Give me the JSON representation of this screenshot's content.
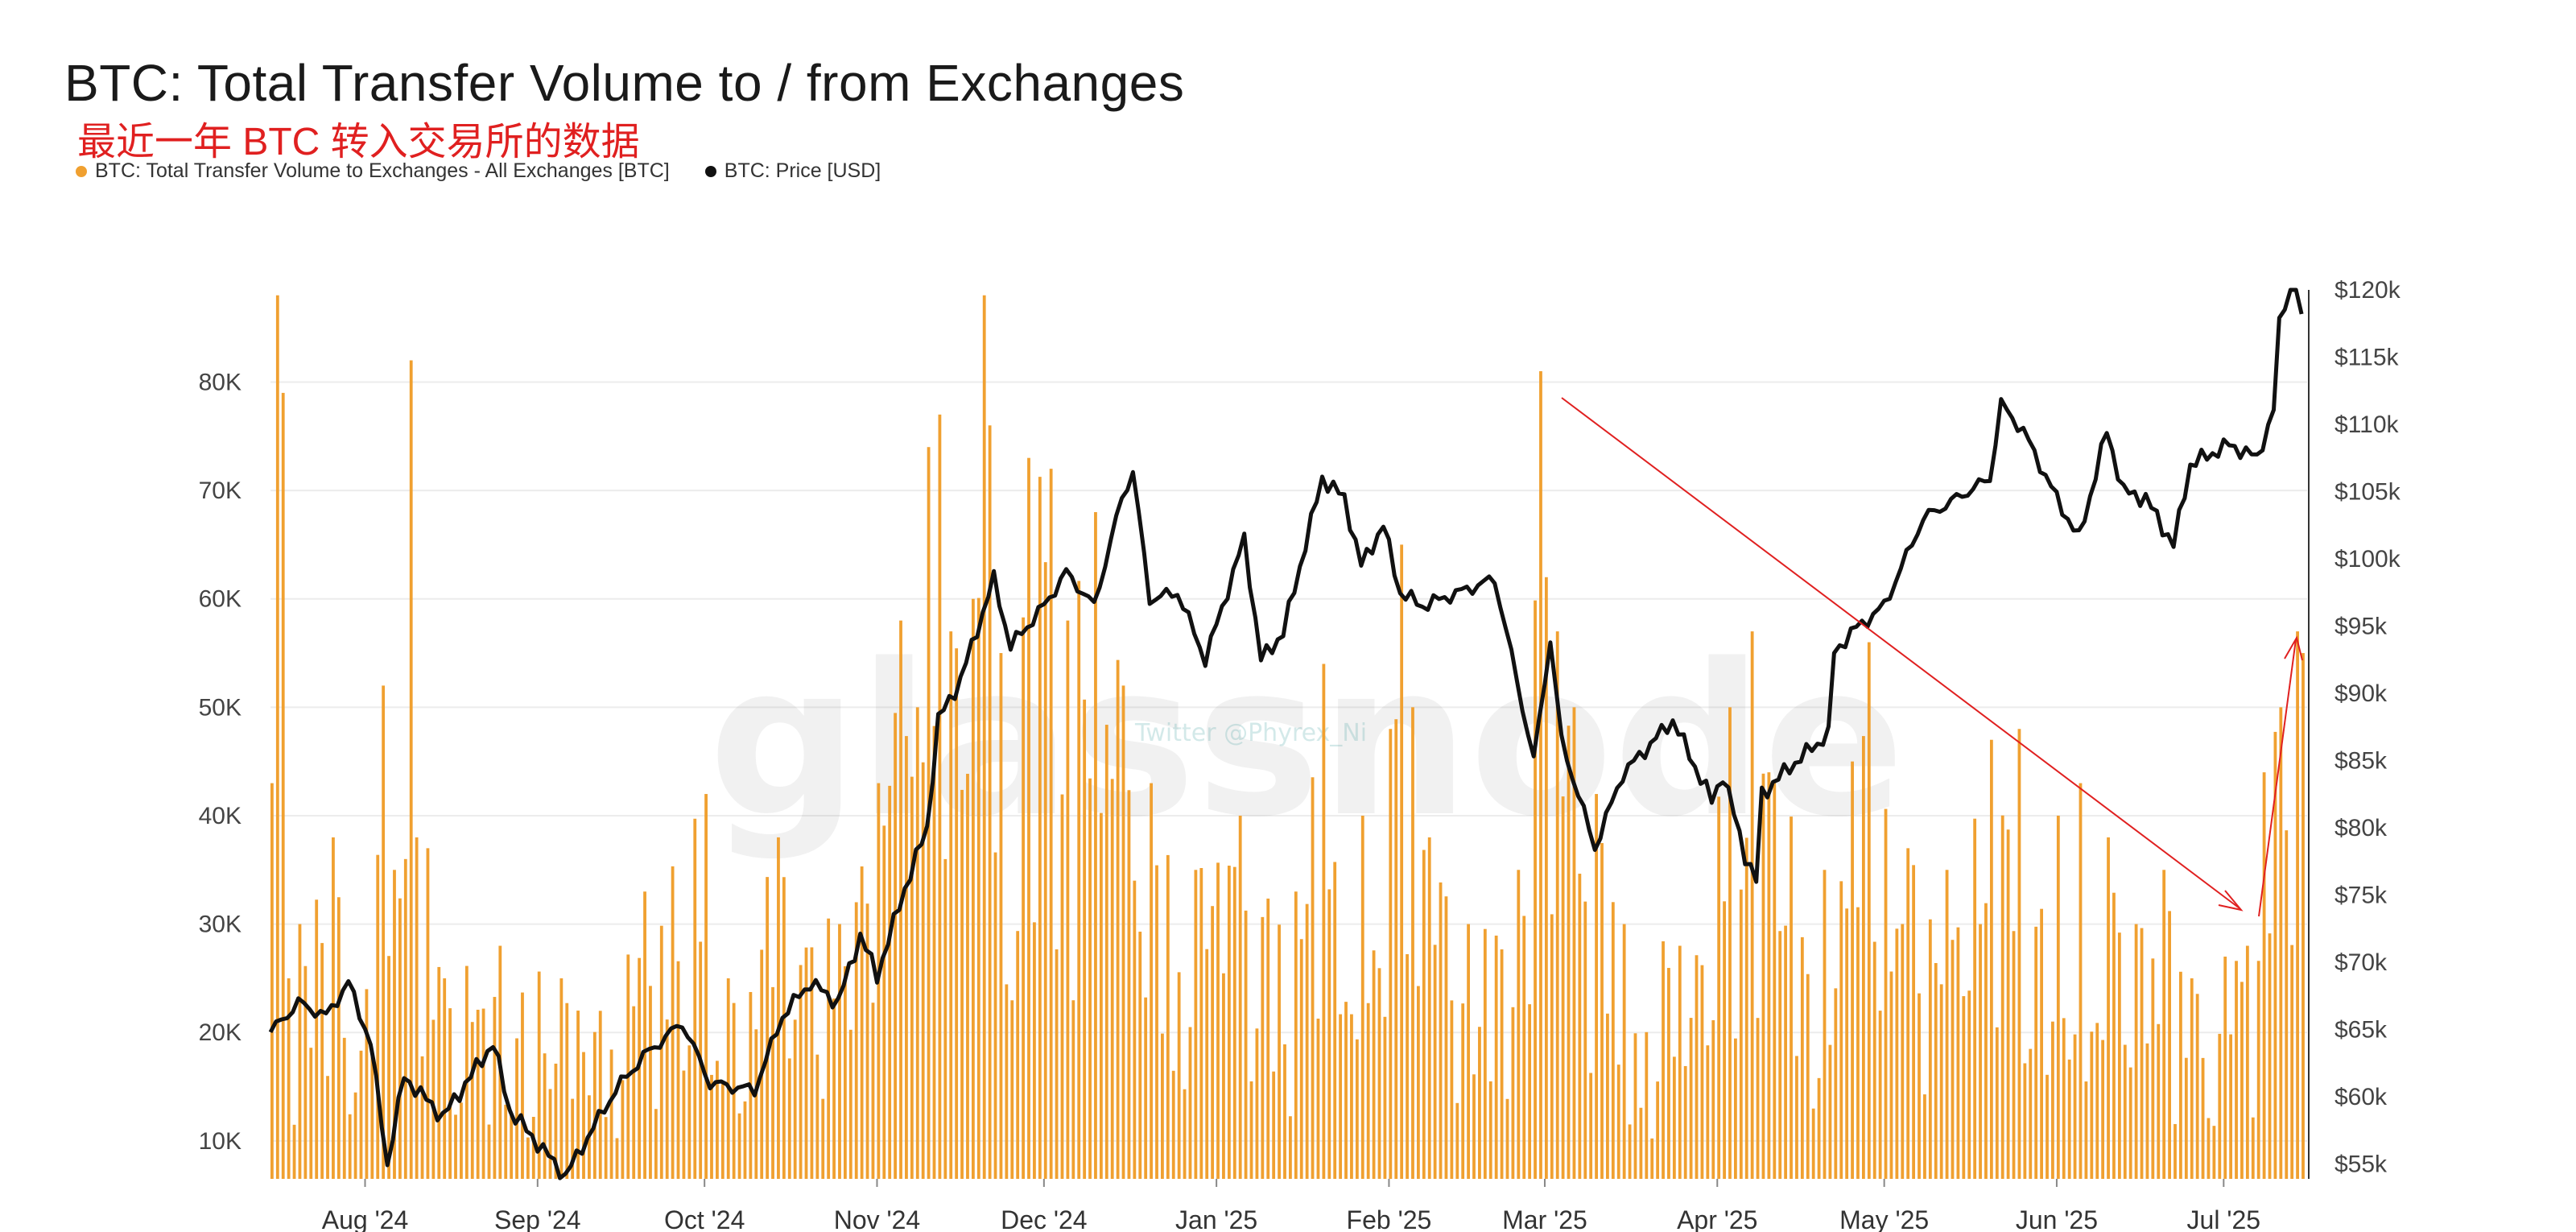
{
  "title": "BTC: Total Transfer Volume to / from Exchanges",
  "subtitle": "最近一年 BTC 转入交易所的数据",
  "watermark": "glassnode",
  "watermark_small": "Twitter @Phyrex_Ni",
  "colors": {
    "bar": "#f0a030",
    "price": "#111111",
    "annotation": "#e02020",
    "grid": "#ececec"
  },
  "chart_data": {
    "type": "bar",
    "legend_position": "top-left",
    "grid": true,
    "x_ticks": [
      "Aug '24",
      "Sep '24",
      "Oct '24",
      "Nov '24",
      "Dec '24",
      "Jan '25",
      "Feb '25",
      "Mar '25",
      "Apr '25",
      "May '25",
      "Jun '25",
      "Jul '25"
    ],
    "x_tick_dates": [
      "2024-08-01",
      "2024-09-01",
      "2024-10-01",
      "2024-11-01",
      "2024-12-01",
      "2025-01-01",
      "2025-02-01",
      "2025-03-01",
      "2025-04-01",
      "2025-05-01",
      "2025-06-01",
      "2025-07-01"
    ],
    "x_range": [
      "2024-07-15",
      "2025-07-16"
    ],
    "y_left": {
      "ticks": [
        "10K",
        "20K",
        "30K",
        "40K",
        "50K",
        "60K",
        "70K",
        "80K"
      ],
      "tick_values": [
        10000,
        20000,
        30000,
        40000,
        50000,
        60000,
        70000,
        80000
      ],
      "range": [
        6500,
        88500
      ]
    },
    "y_right": {
      "ticks": [
        "$55k",
        "$60k",
        "$65k",
        "$70k",
        "$75k",
        "$80k",
        "$85k",
        "$90k",
        "$95k",
        "$100k",
        "$105k",
        "$110k",
        "$115k",
        "$120k"
      ],
      "tick_values": [
        55000,
        60000,
        65000,
        70000,
        75000,
        80000,
        85000,
        90000,
        95000,
        100000,
        105000,
        110000,
        115000,
        120000
      ],
      "range": [
        53900,
        120000
      ]
    },
    "series": [
      {
        "name": "BTC: Total Transfer Volume to Exchanges - All Exchanges [BTC]",
        "type": "bar",
        "axis": "left",
        "color": "#f0a030",
        "keyframes": [
          [
            "2024-07-15",
            43000
          ],
          [
            "2024-07-16",
            88000
          ],
          [
            "2024-07-17",
            79000
          ],
          [
            "2024-07-18",
            25000
          ],
          [
            "2024-07-20",
            30000
          ],
          [
            "2024-07-26",
            38000
          ],
          [
            "2024-08-01",
            24000
          ],
          [
            "2024-08-04",
            52000
          ],
          [
            "2024-08-06",
            35000
          ],
          [
            "2024-08-08",
            36000
          ],
          [
            "2024-08-09",
            82000
          ],
          [
            "2024-08-10",
            38000
          ],
          [
            "2024-08-12",
            37000
          ],
          [
            "2024-08-15",
            25000
          ],
          [
            "2024-08-25",
            28000
          ],
          [
            "2024-09-05",
            25000
          ],
          [
            "2024-09-12",
            22000
          ],
          [
            "2024-09-20",
            33000
          ],
          [
            "2024-10-01",
            42000
          ],
          [
            "2024-10-05",
            25000
          ],
          [
            "2024-10-14",
            38000
          ],
          [
            "2024-10-25",
            30000
          ],
          [
            "2024-11-01",
            43000
          ],
          [
            "2024-11-05",
            58000
          ],
          [
            "2024-11-08",
            50000
          ],
          [
            "2024-11-10",
            74000
          ],
          [
            "2024-11-12",
            77000
          ],
          [
            "2024-11-14",
            57000
          ],
          [
            "2024-11-18",
            60000
          ],
          [
            "2024-11-20",
            88000
          ],
          [
            "2024-11-21",
            76000
          ],
          [
            "2024-11-23",
            55000
          ],
          [
            "2024-11-28",
            73000
          ],
          [
            "2024-12-02",
            72000
          ],
          [
            "2024-12-05",
            58000
          ],
          [
            "2024-12-10",
            68000
          ],
          [
            "2024-12-15",
            52000
          ],
          [
            "2024-12-20",
            43000
          ],
          [
            "2024-12-28",
            35000
          ],
          [
            "2025-01-05",
            40000
          ],
          [
            "2025-01-15",
            33000
          ],
          [
            "2025-01-20",
            54000
          ],
          [
            "2025-01-27",
            40000
          ],
          [
            "2025-02-01",
            48000
          ],
          [
            "2025-02-03",
            65000
          ],
          [
            "2025-02-08",
            38000
          ],
          [
            "2025-02-15",
            30000
          ],
          [
            "2025-02-24",
            35000
          ],
          [
            "2025-02-28",
            81000
          ],
          [
            "2025-03-01",
            62000
          ],
          [
            "2025-03-03",
            57000
          ],
          [
            "2025-03-06",
            50000
          ],
          [
            "2025-03-10",
            42000
          ],
          [
            "2025-03-15",
            30000
          ],
          [
            "2025-03-25",
            28000
          ],
          [
            "2025-04-03",
            50000
          ],
          [
            "2025-04-07",
            57000
          ],
          [
            "2025-04-10",
            44000
          ],
          [
            "2025-04-20",
            35000
          ],
          [
            "2025-04-25",
            45000
          ],
          [
            "2025-04-28",
            56000
          ],
          [
            "2025-05-05",
            37000
          ],
          [
            "2025-05-12",
            35000
          ],
          [
            "2025-05-20",
            47000
          ],
          [
            "2025-05-25",
            48000
          ],
          [
            "2025-06-01",
            40000
          ],
          [
            "2025-06-05",
            43000
          ],
          [
            "2025-06-10",
            38000
          ],
          [
            "2025-06-15",
            30000
          ],
          [
            "2025-06-20",
            35000
          ],
          [
            "2025-06-25",
            25000
          ],
          [
            "2025-07-01",
            27000
          ],
          [
            "2025-07-05",
            28000
          ],
          [
            "2025-07-08",
            44000
          ],
          [
            "2025-07-11",
            50000
          ],
          [
            "2025-07-14",
            57000
          ],
          [
            "2025-07-15",
            55000
          ]
        ]
      },
      {
        "name": "BTC: Price [USD]",
        "type": "line",
        "axis": "right",
        "color": "#111111",
        "keyframes": [
          [
            "2024-07-15",
            64800
          ],
          [
            "2024-07-20",
            67000
          ],
          [
            "2024-07-25",
            66000
          ],
          [
            "2024-07-29",
            68500
          ],
          [
            "2024-08-02",
            64000
          ],
          [
            "2024-08-05",
            55000
          ],
          [
            "2024-08-08",
            61500
          ],
          [
            "2024-08-15",
            58500
          ],
          [
            "2024-08-24",
            64000
          ],
          [
            "2024-08-27",
            59000
          ],
          [
            "2024-09-06",
            54100
          ],
          [
            "2024-09-10",
            57000
          ],
          [
            "2024-09-15",
            60500
          ],
          [
            "2024-09-20",
            63000
          ],
          [
            "2024-09-27",
            65500
          ],
          [
            "2024-10-02",
            61000
          ],
          [
            "2024-10-10",
            60500
          ],
          [
            "2024-10-15",
            66000
          ],
          [
            "2024-10-20",
            68500
          ],
          [
            "2024-10-25",
            67000
          ],
          [
            "2024-10-29",
            72000
          ],
          [
            "2024-11-01",
            69000
          ],
          [
            "2024-11-06",
            75500
          ],
          [
            "2024-11-10",
            80000
          ],
          [
            "2024-11-12",
            88000
          ],
          [
            "2024-11-16",
            91000
          ],
          [
            "2024-11-22",
            98500
          ],
          [
            "2024-11-25",
            93500
          ],
          [
            "2024-12-01",
            96500
          ],
          [
            "2024-12-05",
            99000
          ],
          [
            "2024-12-10",
            96500
          ],
          [
            "2024-12-15",
            104500
          ],
          [
            "2024-12-17",
            106500
          ],
          [
            "2024-12-20",
            97000
          ],
          [
            "2024-12-25",
            97500
          ],
          [
            "2024-12-30",
            92500
          ],
          [
            "2025-01-06",
            101500
          ],
          [
            "2025-01-09",
            92500
          ],
          [
            "2025-01-13",
            94500
          ],
          [
            "2025-01-20",
            106000
          ],
          [
            "2025-01-24",
            104500
          ],
          [
            "2025-01-27",
            99500
          ],
          [
            "2025-01-31",
            102500
          ],
          [
            "2025-02-03",
            97500
          ],
          [
            "2025-02-07",
            96500
          ],
          [
            "2025-02-20",
            98500
          ],
          [
            "2025-02-24",
            91000
          ],
          [
            "2025-02-27",
            85000
          ],
          [
            "2025-03-02",
            94000
          ],
          [
            "2025-03-04",
            86500
          ],
          [
            "2025-03-10",
            78500
          ],
          [
            "2025-03-15",
            84000
          ],
          [
            "2025-03-24",
            88000
          ],
          [
            "2025-03-31",
            82000
          ],
          [
            "2025-04-02",
            84000
          ],
          [
            "2025-04-06",
            78000
          ],
          [
            "2025-04-08",
            76000
          ],
          [
            "2025-04-09",
            82500
          ],
          [
            "2025-04-14",
            84500
          ],
          [
            "2025-04-21",
            87000
          ],
          [
            "2025-04-22",
            93000
          ],
          [
            "2025-04-25",
            94500
          ],
          [
            "2025-05-01",
            96500
          ],
          [
            "2025-05-08",
            103000
          ],
          [
            "2025-05-12",
            104000
          ],
          [
            "2025-05-20",
            106000
          ],
          [
            "2025-05-22",
            111500
          ],
          [
            "2025-05-26",
            109500
          ],
          [
            "2025-06-01",
            104500
          ],
          [
            "2025-06-05",
            101500
          ],
          [
            "2025-06-10",
            109500
          ],
          [
            "2025-06-13",
            105000
          ],
          [
            "2025-06-17",
            104500
          ],
          [
            "2025-06-22",
            101000
          ],
          [
            "2025-06-25",
            107000
          ],
          [
            "2025-07-02",
            108500
          ],
          [
            "2025-07-07",
            107500
          ],
          [
            "2025-07-10",
            111000
          ],
          [
            "2025-07-11",
            117500
          ],
          [
            "2025-07-14",
            122000
          ],
          [
            "2025-07-15",
            117700
          ]
        ]
      }
    ]
  }
}
